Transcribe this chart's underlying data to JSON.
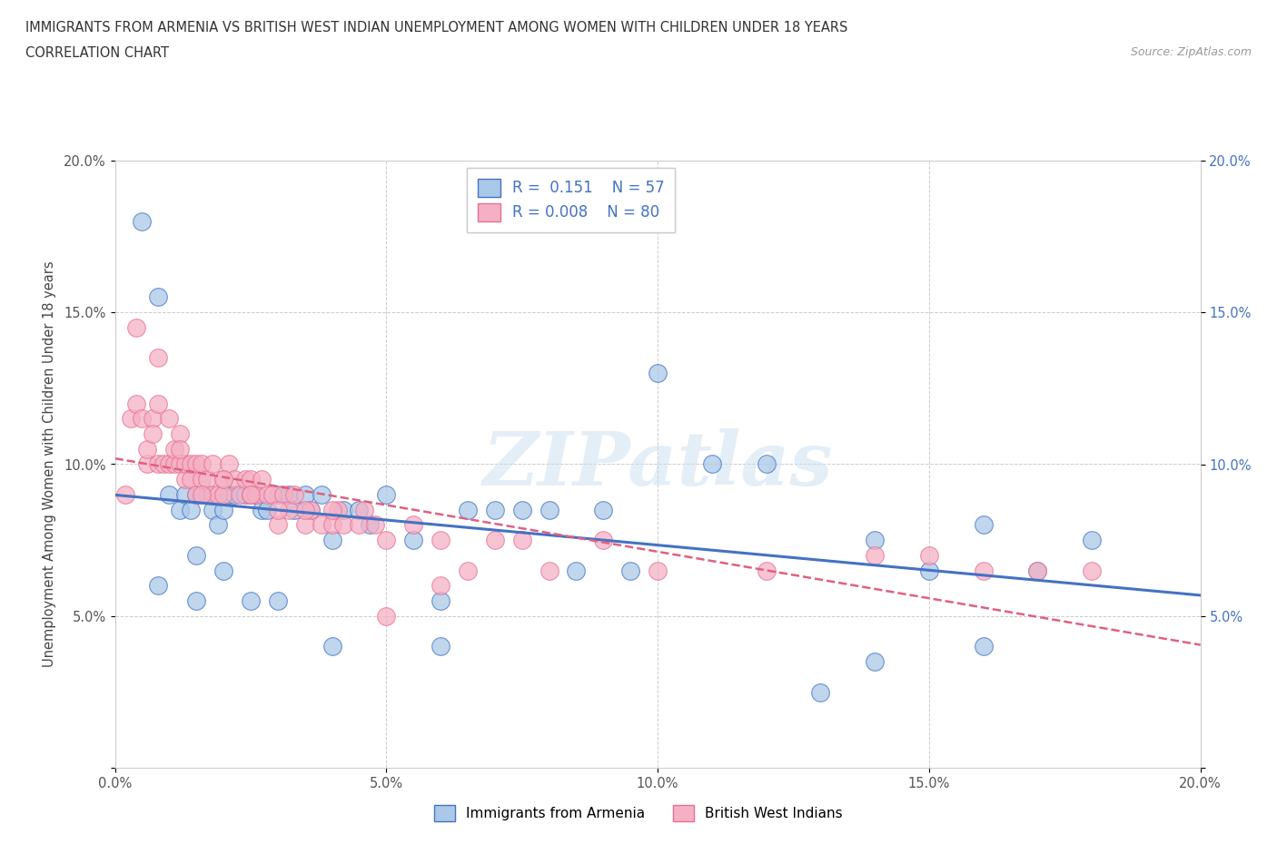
{
  "title_line1": "IMMIGRANTS FROM ARMENIA VS BRITISH WEST INDIAN UNEMPLOYMENT AMONG WOMEN WITH CHILDREN UNDER 18 YEARS",
  "title_line2": "CORRELATION CHART",
  "source": "Source: ZipAtlas.com",
  "ylabel": "Unemployment Among Women with Children Under 18 years",
  "xlim": [
    0.0,
    0.2
  ],
  "ylim": [
    0.0,
    0.2
  ],
  "xticks": [
    0.0,
    0.05,
    0.1,
    0.15,
    0.2
  ],
  "yticks": [
    0.0,
    0.05,
    0.1,
    0.15,
    0.2
  ],
  "xticklabels": [
    "0.0%",
    "5.0%",
    "10.0%",
    "15.0%",
    "20.0%"
  ],
  "ylabels_left": [
    "",
    "5.0%",
    "10.0%",
    "15.0%",
    "20.0%"
  ],
  "ylabels_right": [
    "",
    "5.0%",
    "10.0%",
    "15.0%",
    "20.0%"
  ],
  "color_armenia": "#aac9e8",
  "color_bwi": "#f5b0c5",
  "edge_armenia": "#4472c4",
  "edge_bwi": "#e87090",
  "line_armenia": "#4472c4",
  "line_bwi": "#e06080",
  "R_armenia": 0.151,
  "N_armenia": 57,
  "R_bwi": 0.008,
  "N_bwi": 80,
  "legend_label_armenia": "Immigrants from Armenia",
  "legend_label_bwi": "British West Indians",
  "watermark": "ZIPatlas",
  "bg": "#ffffff",
  "grid_color": "#cccccc",
  "title_color": "#333333",
  "source_color": "#999999",
  "right_tick_color": "#4472c4",
  "arm_x": [
    0.005,
    0.008,
    0.008,
    0.01,
    0.012,
    0.013,
    0.014,
    0.015,
    0.015,
    0.017,
    0.018,
    0.019,
    0.02,
    0.021,
    0.022,
    0.024,
    0.025,
    0.026,
    0.027,
    0.028,
    0.03,
    0.032,
    0.033,
    0.035,
    0.036,
    0.038,
    0.04,
    0.042,
    0.045,
    0.047,
    0.05,
    0.055,
    0.06,
    0.065,
    0.07,
    0.075,
    0.08,
    0.085,
    0.09,
    0.095,
    0.1,
    0.11,
    0.12,
    0.13,
    0.14,
    0.15,
    0.16,
    0.17,
    0.18,
    0.015,
    0.02,
    0.025,
    0.03,
    0.04,
    0.06,
    0.14,
    0.16
  ],
  "arm_y": [
    0.18,
    0.155,
    0.06,
    0.09,
    0.085,
    0.09,
    0.085,
    0.09,
    0.07,
    0.09,
    0.085,
    0.08,
    0.085,
    0.09,
    0.09,
    0.09,
    0.09,
    0.09,
    0.085,
    0.085,
    0.09,
    0.09,
    0.085,
    0.09,
    0.085,
    0.09,
    0.075,
    0.085,
    0.085,
    0.08,
    0.09,
    0.075,
    0.055,
    0.085,
    0.085,
    0.085,
    0.085,
    0.065,
    0.085,
    0.065,
    0.13,
    0.1,
    0.1,
    0.025,
    0.075,
    0.065,
    0.08,
    0.065,
    0.075,
    0.055,
    0.065,
    0.055,
    0.055,
    0.04,
    0.04,
    0.035,
    0.04
  ],
  "bwi_x": [
    0.002,
    0.003,
    0.004,
    0.005,
    0.006,
    0.006,
    0.007,
    0.007,
    0.008,
    0.008,
    0.009,
    0.01,
    0.01,
    0.011,
    0.011,
    0.012,
    0.012,
    0.013,
    0.013,
    0.014,
    0.014,
    0.015,
    0.015,
    0.016,
    0.016,
    0.017,
    0.018,
    0.018,
    0.019,
    0.02,
    0.02,
    0.021,
    0.022,
    0.023,
    0.024,
    0.025,
    0.025,
    0.026,
    0.027,
    0.028,
    0.029,
    0.03,
    0.031,
    0.032,
    0.033,
    0.035,
    0.036,
    0.038,
    0.04,
    0.041,
    0.042,
    0.045,
    0.046,
    0.048,
    0.05,
    0.055,
    0.06,
    0.065,
    0.07,
    0.075,
    0.08,
    0.09,
    0.1,
    0.12,
    0.14,
    0.15,
    0.16,
    0.17,
    0.18,
    0.004,
    0.008,
    0.012,
    0.016,
    0.02,
    0.025,
    0.03,
    0.035,
    0.04,
    0.05,
    0.06
  ],
  "bwi_y": [
    0.09,
    0.115,
    0.12,
    0.115,
    0.1,
    0.105,
    0.115,
    0.11,
    0.1,
    0.12,
    0.1,
    0.1,
    0.115,
    0.1,
    0.105,
    0.1,
    0.11,
    0.095,
    0.1,
    0.095,
    0.1,
    0.09,
    0.1,
    0.095,
    0.1,
    0.095,
    0.09,
    0.1,
    0.09,
    0.095,
    0.09,
    0.1,
    0.095,
    0.09,
    0.095,
    0.09,
    0.095,
    0.09,
    0.095,
    0.09,
    0.09,
    0.08,
    0.09,
    0.085,
    0.09,
    0.08,
    0.085,
    0.08,
    0.08,
    0.085,
    0.08,
    0.08,
    0.085,
    0.08,
    0.075,
    0.08,
    0.075,
    0.065,
    0.075,
    0.075,
    0.065,
    0.075,
    0.065,
    0.065,
    0.07,
    0.07,
    0.065,
    0.065,
    0.065,
    0.145,
    0.135,
    0.105,
    0.09,
    0.095,
    0.09,
    0.085,
    0.085,
    0.085,
    0.05,
    0.06
  ]
}
